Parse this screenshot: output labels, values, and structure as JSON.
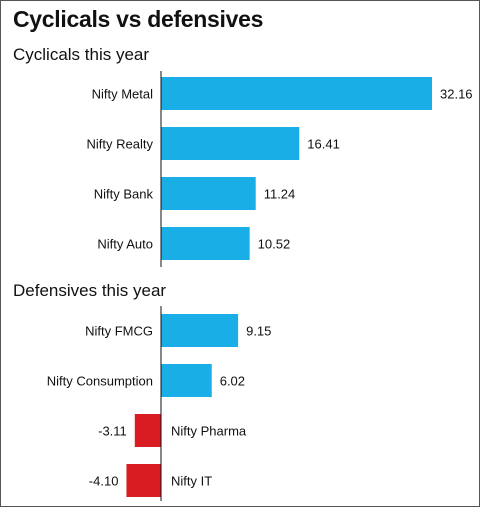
{
  "chart_data": {
    "type": "bar",
    "orientation": "horizontal",
    "title": "Cyclicals vs defensives",
    "colors": {
      "positive": "#1aaee6",
      "negative": "#d91c22",
      "axis": "#111111"
    },
    "groups": [
      {
        "title": "Cyclicals this year",
        "categories": [
          "Nifty Metal",
          "Nifty Realty",
          "Nifty Bank",
          "Nifty Auto"
        ],
        "values": [
          32.16,
          16.41,
          11.24,
          10.52
        ],
        "value_labels": [
          "32.16",
          "16.41",
          "11.24",
          "10.52"
        ]
      },
      {
        "title": "Defensives this year",
        "categories": [
          "Nifty FMCG",
          "Nifty Consumption",
          "Nifty Pharma",
          "Nifty IT"
        ],
        "values": [
          9.15,
          6.02,
          -3.11,
          -4.1
        ],
        "value_labels": [
          "9.15",
          "6.02",
          "-3.11",
          "-4.10"
        ]
      }
    ]
  }
}
